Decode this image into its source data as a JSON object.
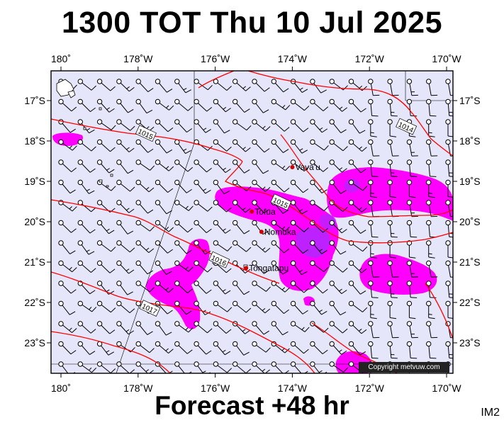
{
  "title": "1300 TOT Thu 10 Jul 2025",
  "subtitle": "Forecast +48 hr",
  "corner_label": "IM2",
  "copyright": "Copyright metvuw.com",
  "longitude_labels": [
    "180˚",
    "178˚W",
    "176˚W",
    "174˚W",
    "172˚W",
    "170˚W"
  ],
  "latitude_labels": [
    "17˚S",
    "18˚S",
    "19˚S",
    "20˚S",
    "21˚S",
    "22˚S",
    "23˚S"
  ],
  "places": [
    {
      "name": "Vava'u",
      "lon": -174.0,
      "lat": -18.65
    },
    {
      "name": "Tofua",
      "lon": -175.05,
      "lat": -19.75
    },
    {
      "name": "Nomuka",
      "lon": -174.8,
      "lat": -20.25
    },
    {
      "name": "Tongatapu",
      "lon": -175.2,
      "lat": -21.15
    }
  ],
  "isobar_labels": [
    {
      "text": "1015",
      "lon": -177.8,
      "lat": -17.82
    },
    {
      "text": "1014",
      "lon": -171.05,
      "lat": -17.65
    },
    {
      "text": "1015",
      "lon": -174.3,
      "lat": -19.52
    },
    {
      "text": "1016",
      "lon": -175.9,
      "lat": -20.95
    },
    {
      "text": "1017",
      "lon": -177.7,
      "lat": -22.15
    }
  ],
  "colors": {
    "background": "#e6e6fa",
    "rain_light": "#ff00ff",
    "rain_heavy": "#9933ff",
    "isobar": "#ff0000",
    "place_dot": "#d00000"
  }
}
